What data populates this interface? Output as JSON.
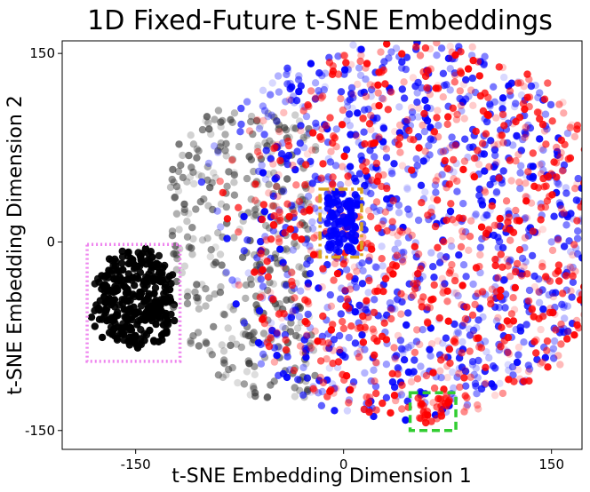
{
  "chart_data": {
    "type": "scatter",
    "title": "1D Fixed-Future t-SNE Embeddings",
    "xlabel": "t-SNE Embedding Dimension 1",
    "ylabel": "t-SNE Embedding Dimension 2",
    "xlim": [
      -203,
      172
    ],
    "ylim": [
      -165,
      160
    ],
    "xticks": [
      -150,
      0,
      150
    ],
    "yticks": [
      -150,
      0,
      150
    ],
    "grid": false,
    "colors": {
      "black": "#000000",
      "red": "#ff0000",
      "blue": "#0000ff",
      "gray": "#333333"
    },
    "series": [
      {
        "color": "#000000",
        "cluster": {
          "center": [
            -150,
            -45
          ],
          "radius": [
            30,
            40
          ],
          "count": 320
        }
      },
      {
        "color": "#333333",
        "region": {
          "x_range": [
            -125,
            -20
          ],
          "y_range": [
            -125,
            105
          ],
          "count": 420
        }
      },
      {
        "color": "#0000ff",
        "region": {
          "center": [
            40,
            10
          ],
          "radius": 152,
          "count": 950
        }
      },
      {
        "color": "#ff0000",
        "region": {
          "center": [
            55,
            10
          ],
          "radius": 150,
          "count": 850
        }
      }
    ],
    "annotations": [
      {
        "shape": "rect",
        "style": "dotted",
        "color": "#ee82ee",
        "x": [
          -185,
          -118
        ],
        "y": [
          -95,
          -2
        ]
      },
      {
        "shape": "rect",
        "style": "dashdot",
        "color": "#daa520",
        "x": [
          -17,
          13
        ],
        "y": [
          -12,
          42
        ]
      },
      {
        "shape": "rect",
        "style": "dashed",
        "color": "#32cd32",
        "x": [
          48,
          81
        ],
        "y": [
          -150,
          -120
        ]
      }
    ]
  }
}
